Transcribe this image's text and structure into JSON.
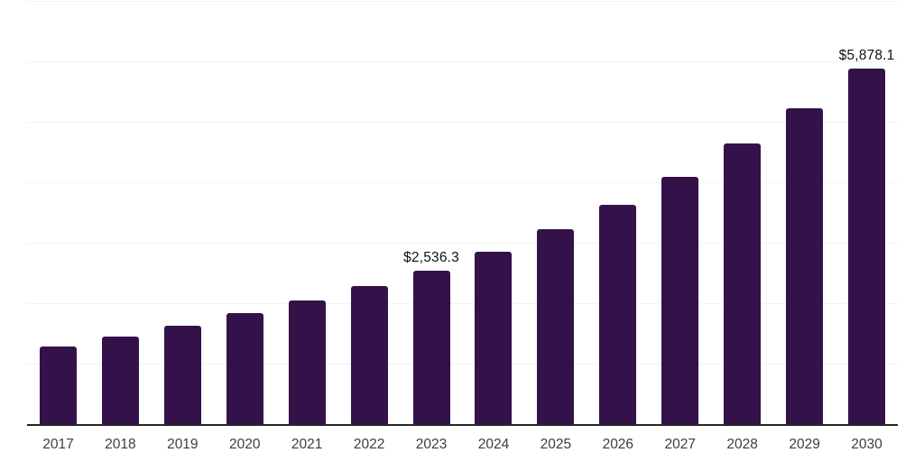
{
  "chart_data": {
    "type": "bar",
    "title": "",
    "xlabel": "",
    "ylabel": "",
    "categories": [
      "2017",
      "2018",
      "2019",
      "2020",
      "2021",
      "2022",
      "2023",
      "2024",
      "2025",
      "2026",
      "2027",
      "2028",
      "2029",
      "2030"
    ],
    "values": [
      1290,
      1455,
      1625,
      1830,
      2040,
      2280,
      2536.3,
      2850,
      3225,
      3630,
      4095,
      4635,
      5220,
      5878.1
    ],
    "data_labels": [
      {
        "category": "2023",
        "text": "$2,536.3"
      },
      {
        "category": "2030",
        "text": "$5,878.1"
      }
    ],
    "ylim": [
      0,
      7000
    ],
    "gridline_step": 1000,
    "grid": true,
    "legend": false,
    "colors": {
      "bar": "#33124a",
      "axis_line": "#262626",
      "gridline": "#f2f2f2",
      "tick_label": "#3d3d3d",
      "data_label": "#111111",
      "background": "#ffffff"
    }
  }
}
